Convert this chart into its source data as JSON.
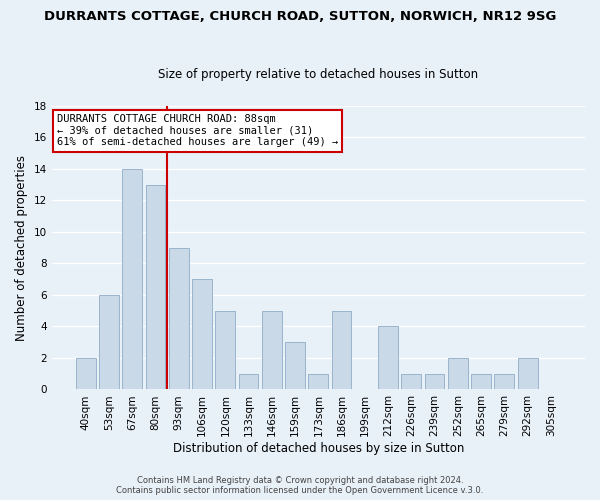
{
  "title": "DURRANTS COTTAGE, CHURCH ROAD, SUTTON, NORWICH, NR12 9SG",
  "subtitle": "Size of property relative to detached houses in Sutton",
  "xlabel": "Distribution of detached houses by size in Sutton",
  "ylabel": "Number of detached properties",
  "bar_labels": [
    "40sqm",
    "53sqm",
    "67sqm",
    "80sqm",
    "93sqm",
    "106sqm",
    "120sqm",
    "133sqm",
    "146sqm",
    "159sqm",
    "173sqm",
    "186sqm",
    "199sqm",
    "212sqm",
    "226sqm",
    "239sqm",
    "252sqm",
    "265sqm",
    "279sqm",
    "292sqm",
    "305sqm"
  ],
  "bar_values": [
    2,
    6,
    14,
    13,
    9,
    7,
    5,
    1,
    5,
    3,
    1,
    5,
    0,
    4,
    1,
    1,
    2,
    1,
    1,
    2,
    0
  ],
  "bar_color": "#c9d9e8",
  "bar_edge_color": "#9ab4cc",
  "vline_color": "#cc0000",
  "vline_pos": 3.5,
  "ylim": [
    0,
    18
  ],
  "yticks": [
    0,
    2,
    4,
    6,
    8,
    10,
    12,
    14,
    16,
    18
  ],
  "annotation_title": "DURRANTS COTTAGE CHURCH ROAD: 88sqm",
  "annotation_line1": "← 39% of detached houses are smaller (31)",
  "annotation_line2": "61% of semi-detached houses are larger (49) →",
  "annotation_box_color": "#ffffff",
  "annotation_box_edge": "#cc0000",
  "footer1": "Contains HM Land Registry data © Crown copyright and database right 2024.",
  "footer2": "Contains public sector information licensed under the Open Government Licence v.3.0.",
  "background_color": "#e8f0f8",
  "grid_color": "#ffffff",
  "title_fontsize": 9.5,
  "subtitle_fontsize": 8.5,
  "axis_label_fontsize": 8.5,
  "tick_fontsize": 7.5
}
